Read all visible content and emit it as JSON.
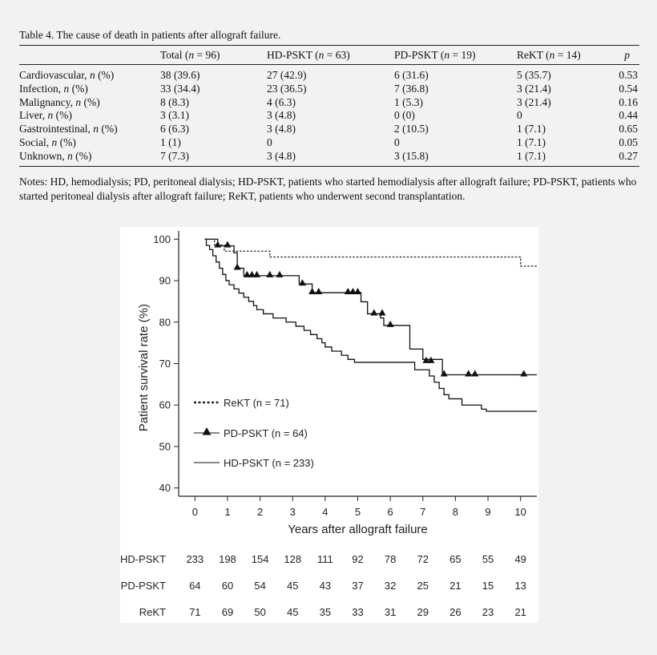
{
  "table": {
    "caption": "Table 4.  The cause of death in patients after allograft failure.",
    "columns": [
      "",
      "Total (n = 96)",
      "HD-PSKT (n = 63)",
      "PD-PSKT (n = 19)",
      "ReKT (n = 14)",
      "p"
    ],
    "rows": [
      [
        "Cardiovascular, n (%)",
        "38 (39.6)",
        "27 (42.9)",
        "6 (31.6)",
        "5 (35.7)",
        "0.53"
      ],
      [
        "Infection, n (%)",
        "33 (34.4)",
        "23 (36.5)",
        "7 (36.8)",
        "3 (21.4)",
        "0.54"
      ],
      [
        "Malignancy, n (%)",
        "8 (8.3)",
        "4 (6.3)",
        "1 (5.3)",
        "3 (21.4)",
        "0.16"
      ],
      [
        "Liver, n (%)",
        "3 (3.1)",
        "3 (4.8)",
        "0 (0)",
        "0",
        "0.44"
      ],
      [
        "Gastrointestinal, n (%)",
        "6 (6.3)",
        "3 (4.8)",
        "2 (10.5)",
        "1 (7.1)",
        "0.65"
      ],
      [
        "Social, n (%)",
        "1 (1)",
        "0",
        "0",
        "1 (7.1)",
        "0.05"
      ],
      [
        "Unknown, n (%)",
        "7 (7.3)",
        "3 (4.8)",
        "3 (15.8)",
        "1 (7.1)",
        "0.27"
      ]
    ],
    "notes": "Notes: HD, hemodialysis; PD, peritoneal dialysis; HD-PSKT, patients who started hemodialysis after allograft failure; PD-PSKT, patients who started peritoneal dialysis after allograft failure; ReKT, patients who underwent second transplantation."
  },
  "figure": {
    "ylabel": "Patient survival rate (%)",
    "xlabel": "Years after allograft failure",
    "y_ticks": [
      "100",
      "90",
      "80",
      "70",
      "60",
      "50",
      "40"
    ],
    "x_ticks": [
      "0",
      "1",
      "2",
      "3",
      "4",
      "5",
      "6",
      "7",
      "8",
      "9",
      "10"
    ],
    "legend": [
      {
        "name": "ReKT (n = 71)",
        "style": "dotted"
      },
      {
        "name": "PD-PSKT (n = 64)",
        "style": "solid-triangle"
      },
      {
        "name": "HD-PSKT (n = 233)",
        "style": "solid"
      }
    ],
    "risk_table": [
      {
        "group": "HD-PSKT",
        "values": [
          "233",
          "198",
          "154",
          "128",
          "111",
          "92",
          "78",
          "72",
          "65",
          "55",
          "49"
        ]
      },
      {
        "group": "PD-PSKT",
        "values": [
          "64",
          "60",
          "54",
          "45",
          "43",
          "37",
          "32",
          "25",
          "21",
          "15",
          "13"
        ]
      },
      {
        "group": "ReKT",
        "values": [
          "71",
          "69",
          "50",
          "45",
          "35",
          "33",
          "31",
          "29",
          "26",
          "23",
          "21"
        ]
      }
    ]
  },
  "chart_data": {
    "type": "line",
    "xlabel": "Years after allograft failure",
    "ylabel": "Patient survival rate (%)",
    "xlim": [
      -0.5,
      10.5
    ],
    "ylim": [
      38,
      102
    ],
    "series": [
      {
        "name": "ReKT (n = 71)",
        "step": [
          [
            0.3,
            100
          ],
          [
            0.6,
            98.6
          ],
          [
            0.9,
            97.1
          ],
          [
            2.3,
            95.7
          ],
          [
            10.0,
            93.5
          ],
          [
            10.5,
            93.5
          ]
        ],
        "censor": []
      },
      {
        "name": "PD-PSKT (n = 64)",
        "step": [
          [
            0.3,
            100
          ],
          [
            0.7,
            98.4
          ],
          [
            1.2,
            96.7
          ],
          [
            1.3,
            93.0
          ],
          [
            1.5,
            91.2
          ],
          [
            3.2,
            89.2
          ],
          [
            3.6,
            87.1
          ],
          [
            5.1,
            84.9
          ],
          [
            5.3,
            82.0
          ],
          [
            5.7,
            81.0
          ],
          [
            5.8,
            79.2
          ],
          [
            6.6,
            73.5
          ],
          [
            7.0,
            71.0
          ],
          [
            7.6,
            67.3
          ],
          [
            10.5,
            67.3
          ]
        ],
        "censor": [
          [
            0.7,
            98.4
          ],
          [
            1.0,
            98.4
          ],
          [
            1.3,
            93.0
          ],
          [
            1.6,
            91.2
          ],
          [
            1.75,
            91.2
          ],
          [
            1.9,
            91.2
          ],
          [
            2.3,
            91.2
          ],
          [
            2.6,
            91.2
          ],
          [
            3.3,
            89.2
          ],
          [
            3.6,
            87.1
          ],
          [
            3.8,
            87.1
          ],
          [
            4.7,
            87.1
          ],
          [
            4.85,
            87.1
          ],
          [
            5.0,
            87.1
          ],
          [
            5.5,
            82.0
          ],
          [
            5.75,
            82.0
          ],
          [
            6.0,
            79.2
          ],
          [
            7.1,
            70.5
          ],
          [
            7.25,
            70.5
          ],
          [
            7.65,
            67.3
          ],
          [
            8.4,
            67.3
          ],
          [
            8.6,
            67.3
          ],
          [
            10.1,
            67.3
          ]
        ]
      },
      {
        "name": "HD-PSKT (n = 233)",
        "step": [
          [
            0.3,
            100
          ],
          [
            0.35,
            98.5
          ],
          [
            0.45,
            97.5
          ],
          [
            0.55,
            96
          ],
          [
            0.65,
            94.5
          ],
          [
            0.75,
            93
          ],
          [
            0.85,
            91.5
          ],
          [
            0.95,
            90
          ],
          [
            1.05,
            89
          ],
          [
            1.2,
            88
          ],
          [
            1.35,
            87
          ],
          [
            1.5,
            86
          ],
          [
            1.65,
            85
          ],
          [
            1.8,
            84
          ],
          [
            1.9,
            83
          ],
          [
            2.1,
            82
          ],
          [
            2.4,
            81
          ],
          [
            2.8,
            80
          ],
          [
            3.1,
            79
          ],
          [
            3.35,
            78
          ],
          [
            3.55,
            77
          ],
          [
            3.75,
            76
          ],
          [
            3.9,
            75
          ],
          [
            4.0,
            74
          ],
          [
            4.2,
            73
          ],
          [
            4.5,
            72
          ],
          [
            4.7,
            71
          ],
          [
            4.9,
            70.3
          ],
          [
            6.75,
            68.5
          ],
          [
            7.2,
            67
          ],
          [
            7.35,
            65.5
          ],
          [
            7.5,
            64
          ],
          [
            7.65,
            62.5
          ],
          [
            7.8,
            61.5
          ],
          [
            8.2,
            60
          ],
          [
            8.8,
            59
          ],
          [
            8.95,
            58.5
          ],
          [
            10.5,
            58.5
          ]
        ],
        "censor": []
      }
    ]
  }
}
